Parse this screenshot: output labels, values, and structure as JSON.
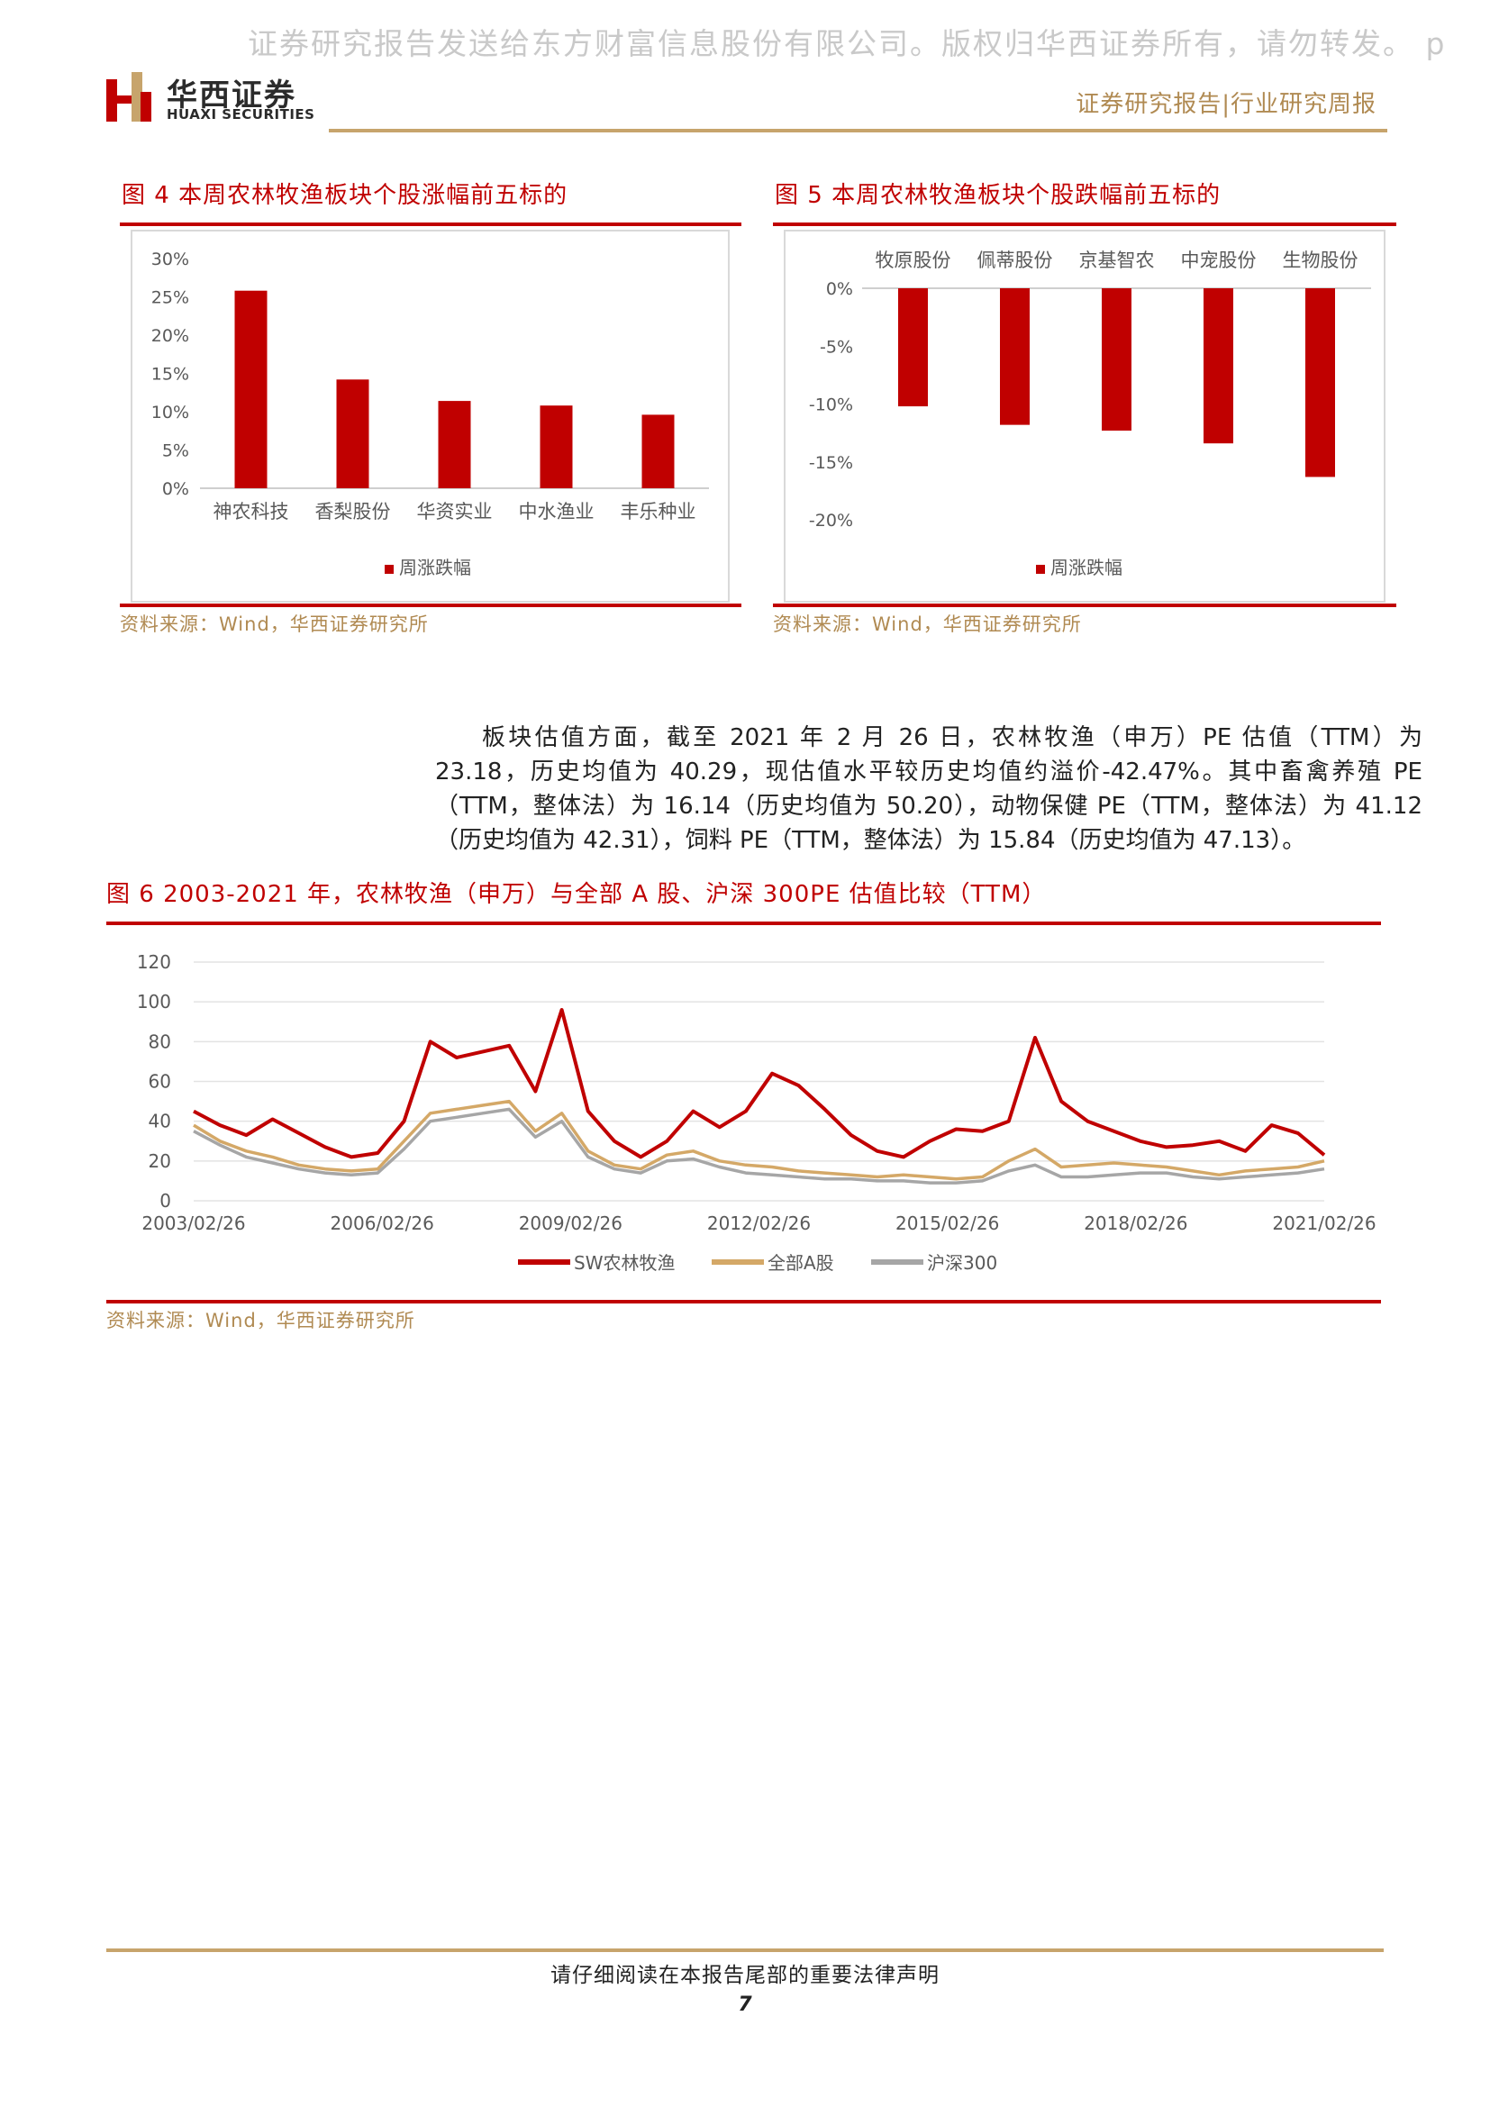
{
  "watermark": "证券研究报告发送给东方财富信息股份有限公司。版权归华西证券所有，请勿转发。 p",
  "header": {
    "logo_cn": "华西证券",
    "logo_en": "HUAXI SECURITIES",
    "report_type": "证券研究报告|行业研究周报"
  },
  "figures": {
    "fig4": {
      "title": "图 4  本周农林牧渔板块个股涨幅前五标的",
      "source": "资料来源：Wind，华西证券研究所"
    },
    "fig5": {
      "title": "图 5  本周农林牧渔板块个股跌幅前五标的",
      "source": "资料来源：Wind，华西证券研究所"
    },
    "fig6": {
      "title": "图 6  2003-2021 年，农林牧渔（申万）与全部 A 股、沪深 300PE 估值比较（TTM）",
      "source": "资料来源：Wind，华西证券研究所"
    }
  },
  "paragraph": "板块估值方面，截至 2021 年 2 月 26 日，农林牧渔（申万）PE 估值（TTM）为 23.18，历史均值为 40.29，现估值水平较历史均值约溢价-42.47%。其中畜禽养殖 PE（TTM，整体法）为 16.14（历史均值为 50.20），动物保健 PE（TTM，整体法）为 41.12（历史均值为 42.31），饲料 PE（TTM，整体法）为 15.84（历史均值为 47.13）。",
  "footer": {
    "note": "请仔细阅读在本报告尾部的重要法律声明",
    "page": "7"
  },
  "chart_data": [
    {
      "type": "bar",
      "categories": [
        "神农科技",
        "香梨股份",
        "华资实业",
        "中水渔业",
        "丰乐种业"
      ],
      "series": [
        {
          "name": "周涨跌幅",
          "values": [
            25.8,
            14.2,
            11.4,
            10.8,
            9.6
          ]
        }
      ],
      "ylim": [
        0,
        30
      ],
      "yticks": [
        "0%",
        "5%",
        "10%",
        "15%",
        "20%",
        "25%",
        "30%"
      ],
      "color": "#c00000",
      "legend": "bottom"
    },
    {
      "type": "bar",
      "categories": [
        "牧原股份",
        "佩蒂股份",
        "京基智农",
        "中宠股份",
        "生物股份"
      ],
      "series": [
        {
          "name": "周涨跌幅",
          "values": [
            -10.2,
            -11.8,
            -12.3,
            -13.4,
            -16.3
          ]
        }
      ],
      "ylim": [
        -20,
        0
      ],
      "yticks": [
        "0%",
        "-5%",
        "-10%",
        "-15%",
        "-20%"
      ],
      "color": "#c00000",
      "legend": "bottom"
    },
    {
      "type": "line",
      "x": [
        "2003/02/26",
        "2003/08",
        "2004/02",
        "2004/08",
        "2005/02",
        "2005/08",
        "2006/02/26",
        "2006/08",
        "2007/02",
        "2007/05",
        "2007/08",
        "2007/11",
        "2008/01",
        "2008/04",
        "2008/06",
        "2008/09",
        "2008/11",
        "2009/02/26",
        "2009/08",
        "2010/02",
        "2010/06",
        "2010/11",
        "2011/03",
        "2011/08",
        "2012/02/26",
        "2012/08",
        "2013/02",
        "2013/08",
        "2014/02",
        "2014/08",
        "2015/02/26",
        "2015/06",
        "2015/09",
        "2016/02",
        "2016/08",
        "2017/02",
        "2017/08",
        "2018/02/26",
        "2018/08",
        "2019/02",
        "2019/08",
        "2020/02",
        "2020/08",
        "2021/02/26"
      ],
      "series": [
        {
          "name": "SW农林牧渔",
          "color": "#c00000",
          "values": [
            45,
            38,
            33,
            41,
            34,
            27,
            22,
            24,
            40,
            80,
            72,
            75,
            78,
            55,
            96,
            45,
            30,
            22,
            30,
            45,
            37,
            45,
            64,
            58,
            46,
            33,
            25,
            22,
            30,
            36,
            35,
            40,
            82,
            50,
            40,
            35,
            30,
            27,
            28,
            30,
            25,
            38,
            34,
            23
          ]
        },
        {
          "name": "全部A股",
          "color": "#d4a867",
          "values": [
            38,
            30,
            25,
            22,
            18,
            16,
            15,
            16,
            30,
            44,
            46,
            48,
            50,
            35,
            44,
            25,
            18,
            16,
            23,
            25,
            20,
            18,
            17,
            15,
            14,
            13,
            12,
            13,
            12,
            11,
            12,
            20,
            26,
            17,
            18,
            19,
            18,
            17,
            15,
            13,
            15,
            16,
            17,
            20
          ]
        },
        {
          "name": "沪深300",
          "color": "#a6a6a6",
          "values": [
            35,
            28,
            22,
            19,
            16,
            14,
            13,
            14,
            26,
            40,
            42,
            44,
            46,
            32,
            40,
            22,
            16,
            14,
            20,
            21,
            17,
            14,
            13,
            12,
            11,
            11,
            10,
            10,
            9,
            9,
            10,
            15,
            18,
            12,
            12,
            13,
            14,
            14,
            12,
            11,
            12,
            13,
            14,
            16
          ]
        }
      ],
      "ylim": [
        0,
        120
      ],
      "yticks": [
        "0",
        "20",
        "40",
        "60",
        "80",
        "100",
        "120"
      ],
      "xticks": [
        "2003/02/26",
        "2006/02/26",
        "2009/02/26",
        "2012/02/26",
        "2015/02/26",
        "2018/02/26",
        "2021/02/26"
      ],
      "legend": "bottom"
    }
  ]
}
